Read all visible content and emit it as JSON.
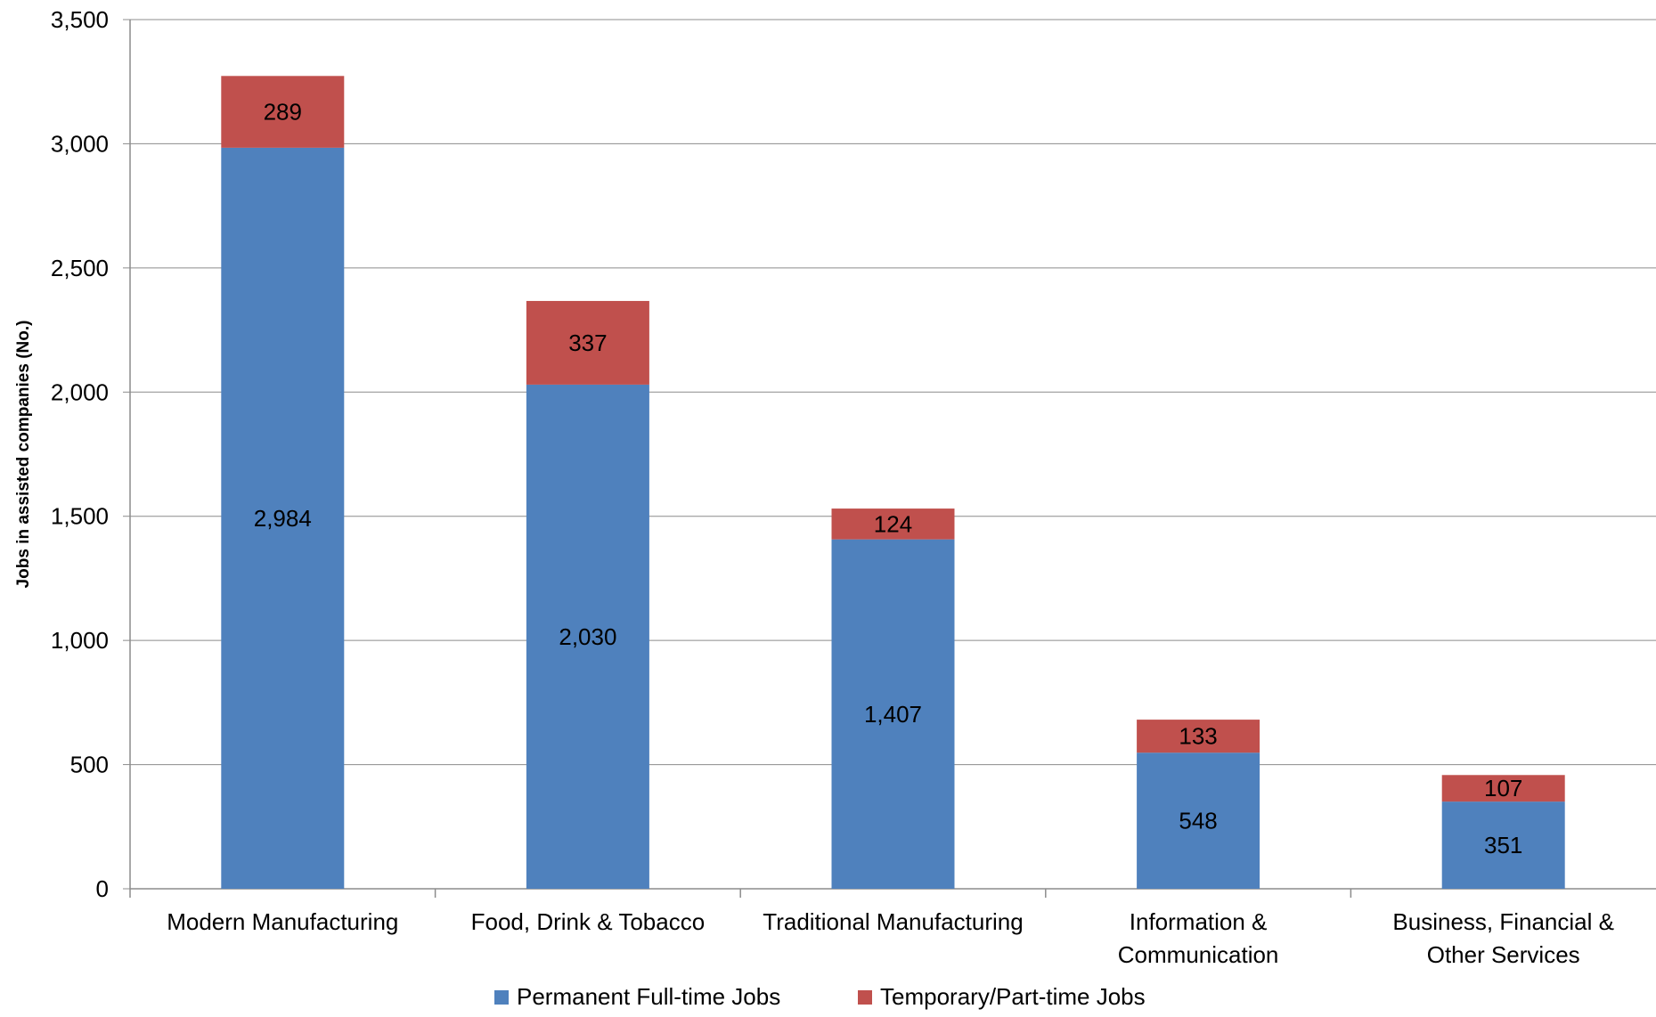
{
  "chart_data": {
    "type": "bar",
    "stacked": true,
    "title": "",
    "xlabel": "",
    "ylabel": "Jobs in assisted companies (No.)",
    "ylim": [
      0,
      3500
    ],
    "yticks": [
      0,
      500,
      1000,
      1500,
      2000,
      2500,
      3000,
      3500
    ],
    "ytick_labels": [
      "0",
      "500",
      "1,000",
      "1,500",
      "2,000",
      "2,500",
      "3,000",
      "3,500"
    ],
    "grid": true,
    "legend_position": "bottom",
    "categories": [
      [
        "Modern Manufacturing"
      ],
      [
        "Food, Drink & Tobacco"
      ],
      [
        "Traditional Manufacturing"
      ],
      [
        "Information &",
        "Communication"
      ],
      [
        "Business, Financial &",
        "Other Services"
      ]
    ],
    "series": [
      {
        "name": "Permanent Full-time Jobs",
        "color": "#4f81bd",
        "values": [
          2984,
          2030,
          1407,
          548,
          351
        ],
        "labels": [
          "2,984",
          "2,030",
          "1,407",
          "548",
          "351"
        ]
      },
      {
        "name": "Temporary/Part-time Jobs",
        "color": "#c0504d",
        "values": [
          289,
          337,
          124,
          133,
          107
        ],
        "labels": [
          "289",
          "337",
          "124",
          "133",
          "107"
        ]
      }
    ]
  }
}
